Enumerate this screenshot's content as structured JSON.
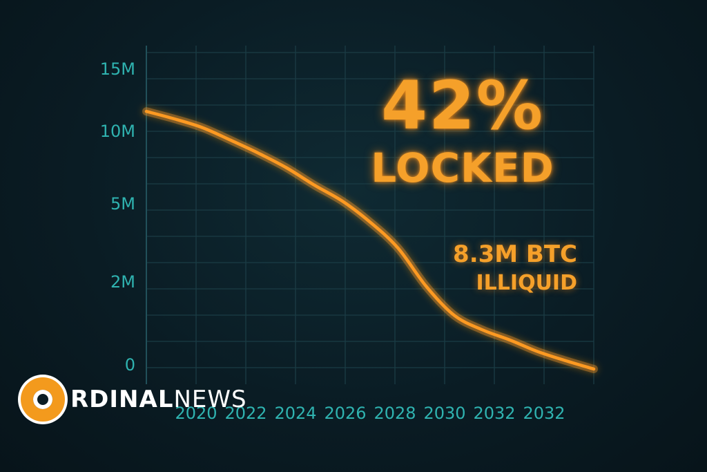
{
  "chart_data": {
    "type": "line",
    "x_tick_labels": [
      "2020",
      "2022",
      "2024",
      "2026",
      "2028",
      "2030",
      "2032",
      "2032"
    ],
    "y_tick_labels": [
      "15M",
      "10M",
      "5M",
      "2M",
      "0"
    ],
    "series": [
      {
        "color": "#ff9a22",
        "points": [
          {
            "x": 2018.0,
            "y": 11.6
          },
          {
            "x": 2019.0,
            "y": 11.0
          },
          {
            "x": 2020.0,
            "y": 10.3
          },
          {
            "x": 2021.0,
            "y": 9.4
          },
          {
            "x": 2022.0,
            "y": 8.5
          },
          {
            "x": 2023.0,
            "y": 7.5
          },
          {
            "x": 2024.0,
            "y": 6.3
          },
          {
            "x": 2025.0,
            "y": 5.2
          },
          {
            "x": 2026.0,
            "y": 4.3
          },
          {
            "x": 2027.0,
            "y": 3.3
          },
          {
            "x": 2028.0,
            "y": 1.9
          },
          {
            "x": 2029.0,
            "y": 1.2
          },
          {
            "x": 2030.0,
            "y": 0.85
          },
          {
            "x": 2031.0,
            "y": 0.6
          },
          {
            "x": 2032.0,
            "y": 0.32
          },
          {
            "x": 2033.0,
            "y": 0.1
          },
          {
            "x": 2034.0,
            "y": -0.1
          }
        ]
      }
    ],
    "grid": true,
    "colors": {
      "line": "#ff9a22",
      "grid": "#1b3c45",
      "ticks": "#2fb3b0",
      "headline": "#f5a02a"
    }
  },
  "headline": {
    "percent": "42%",
    "locked": "LOCKED",
    "amount": "8.3M BTC",
    "illiquid": "ILLIQUID"
  },
  "logo": {
    "prefix": "RDINAL",
    "suffix": "NEWS",
    "icon": "orange-ring-logo-icon"
  }
}
